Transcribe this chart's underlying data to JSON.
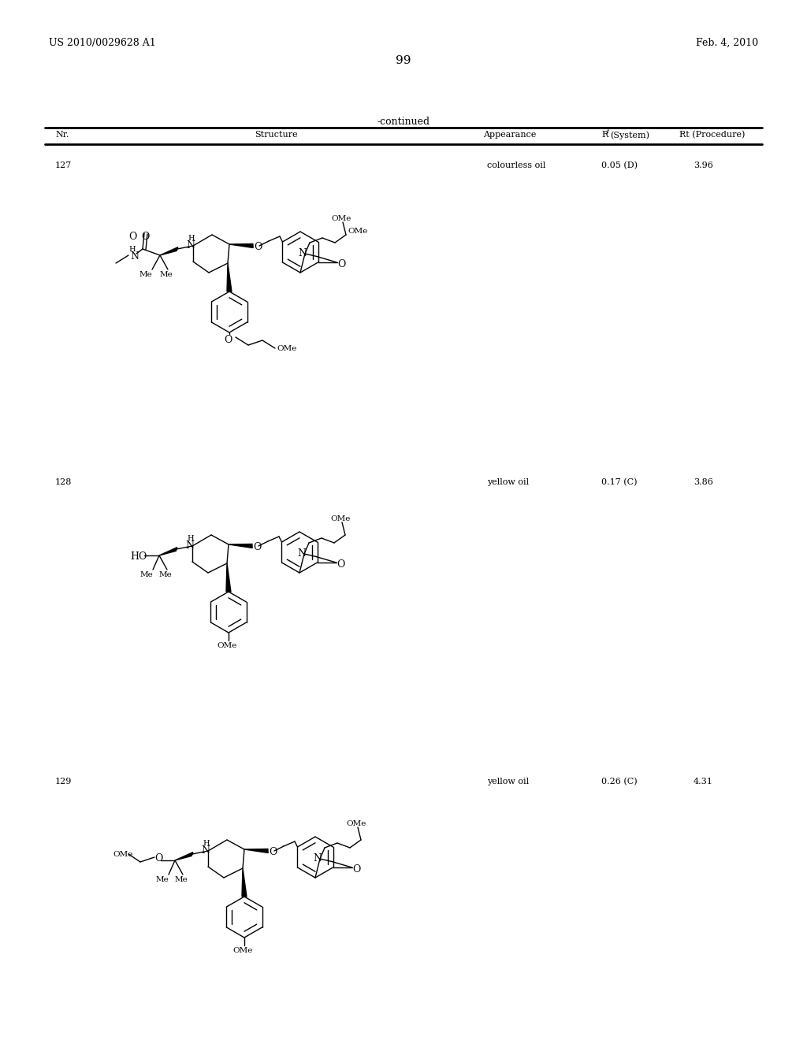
{
  "page_left": "US 2010/0029628 A1",
  "page_right": "Feb. 4, 2010",
  "page_number": "99",
  "continued_label": "-continued",
  "col_nr": "Nr.",
  "col_structure": "Structure",
  "col_appearance": "Appearance",
  "col_rf": "R",
  "col_rf_sub": "f",
  "col_rf_sys": "(System)",
  "col_rt": "Rt (Procedure)",
  "rows": [
    {
      "nr": "127",
      "appearance": "colourless oil",
      "rf": "0.05 (D)",
      "rt": "3.96"
    },
    {
      "nr": "128",
      "appearance": "yellow oil",
      "rf": "0.17 (C)",
      "rt": "3.86"
    },
    {
      "nr": "129",
      "appearance": "yellow oil",
      "rf": "0.26 (C)",
      "rt": "4.31"
    }
  ],
  "bg": "#ffffff"
}
